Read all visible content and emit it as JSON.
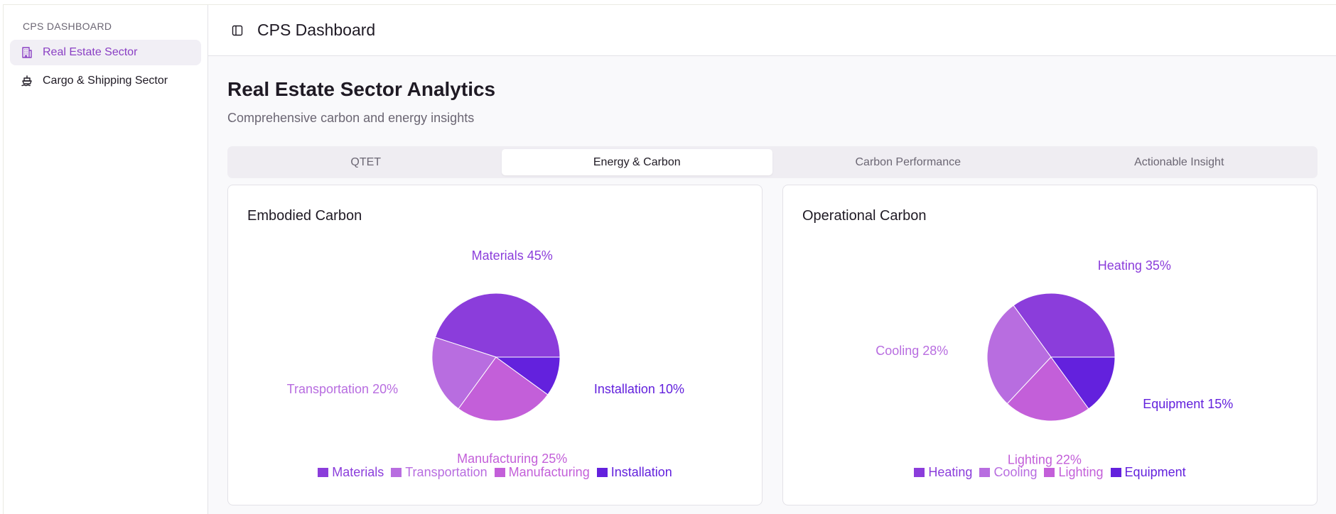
{
  "sidebar": {
    "heading": "CPS DASHBOARD",
    "items": [
      {
        "label": "Real Estate Sector",
        "icon": "building-icon",
        "active": true
      },
      {
        "label": "Cargo & Shipping Sector",
        "icon": "ship-icon",
        "active": false
      }
    ]
  },
  "topbar": {
    "title": "CPS Dashboard",
    "toggle_icon": "sidebar-toggle-icon"
  },
  "page": {
    "title": "Real Estate Sector Analytics",
    "subtitle": "Comprehensive carbon and energy insights"
  },
  "tabs": [
    {
      "label": "QTET",
      "active": false
    },
    {
      "label": "Energy & Carbon",
      "active": true
    },
    {
      "label": "Carbon Performance",
      "active": false
    },
    {
      "label": "Actionable Insight",
      "active": false
    }
  ],
  "colors": {
    "accent": "#8a3fc4",
    "slice1": "#8b3ddb",
    "slice2": "#b86de0",
    "slice3": "#c35fd9",
    "slice4": "#6321dd"
  },
  "chart_data": [
    {
      "type": "pie",
      "title": "Embodied Carbon",
      "categories": [
        "Materials",
        "Transportation",
        "Manufacturing",
        "Installation"
      ],
      "values": [
        45,
        20,
        25,
        10
      ],
      "labels": [
        "Materials 45%",
        "Transportation 20%",
        "Manufacturing 25%",
        "Installation 10%"
      ],
      "legend": "bottom"
    },
    {
      "type": "pie",
      "title": "Operational Carbon",
      "categories": [
        "Heating",
        "Cooling",
        "Lighting",
        "Equipment"
      ],
      "values": [
        35,
        28,
        22,
        15
      ],
      "labels": [
        "Heating 35%",
        "Cooling 28%",
        "Lighting 22%",
        "Equipment 15%"
      ],
      "legend": "bottom"
    }
  ]
}
